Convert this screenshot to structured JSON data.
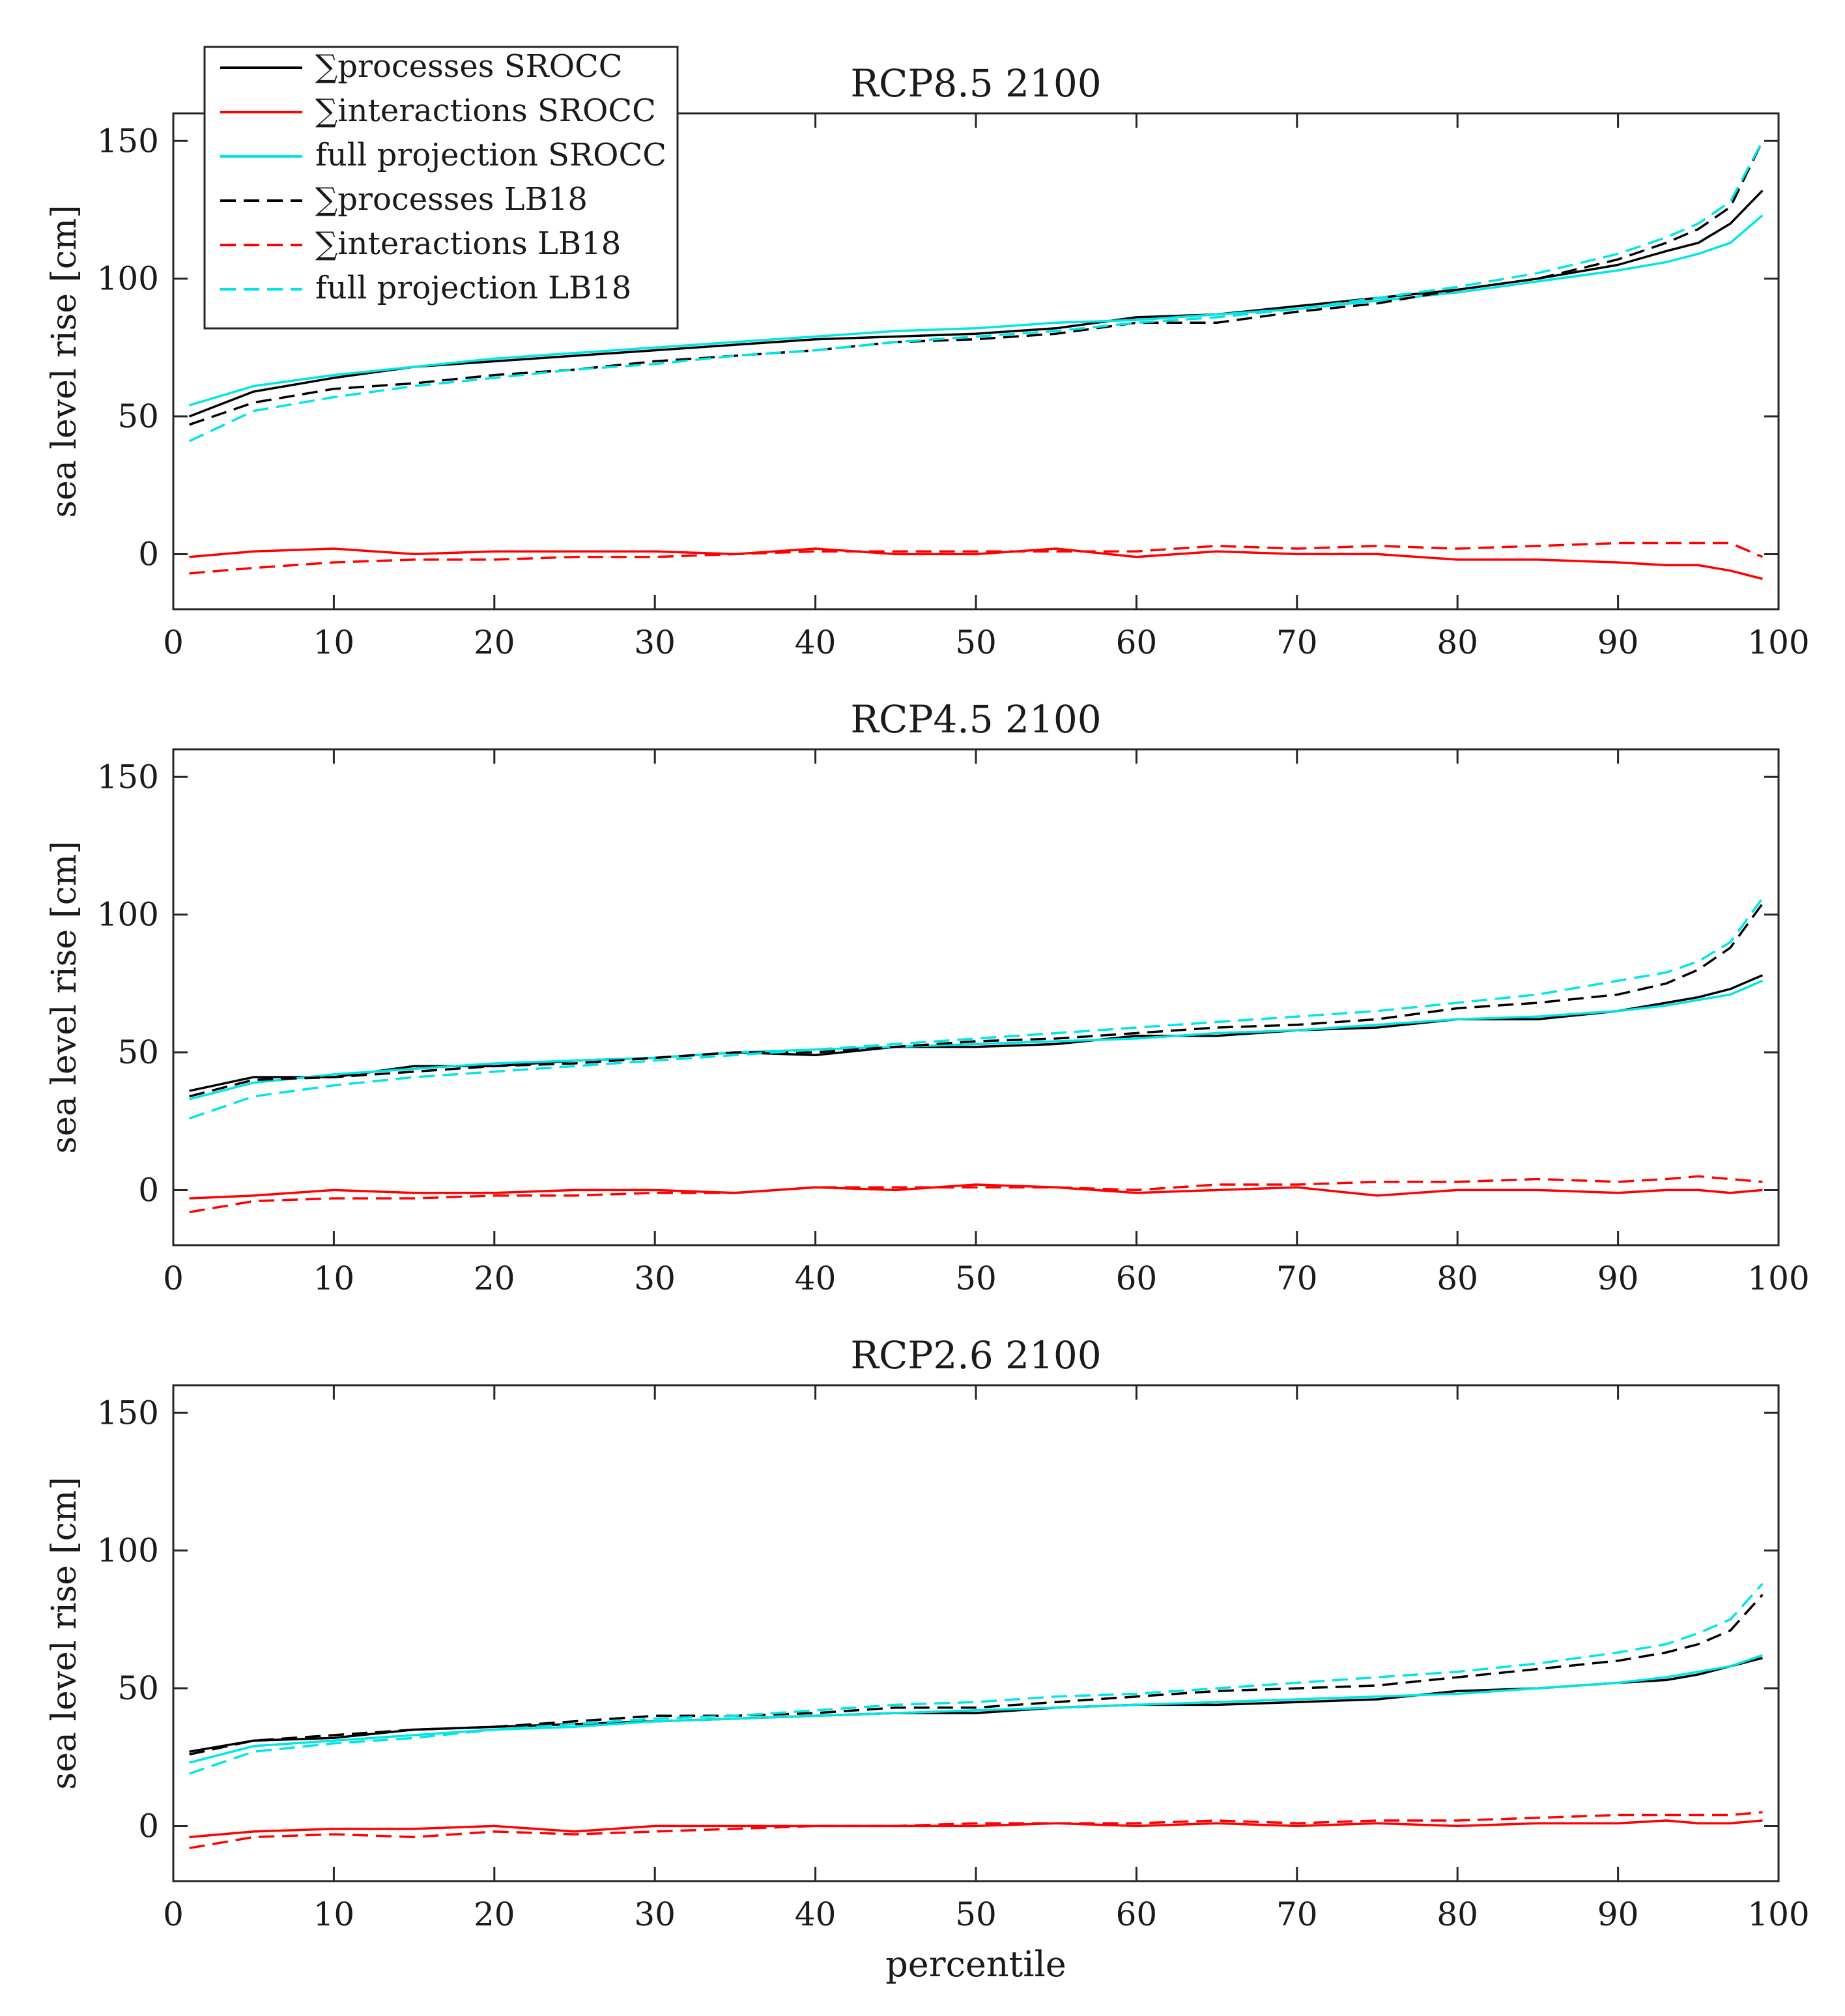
{
  "chart_data": [
    {
      "type": "line",
      "title": "RCP8.5 2100",
      "xlabel": "",
      "ylabel": "sea level rise [cm]",
      "xlim": [
        0,
        100
      ],
      "ylim": [
        -20,
        160
      ],
      "xticks": [
        0,
        10,
        20,
        30,
        40,
        50,
        60,
        70,
        80,
        90,
        100
      ],
      "yticks": [
        0,
        50,
        100,
        150
      ],
      "grid": false,
      "legend": "top-left",
      "x": [
        1,
        5,
        10,
        15,
        20,
        25,
        30,
        35,
        40,
        45,
        50,
        55,
        60,
        65,
        70,
        75,
        80,
        85,
        90,
        93,
        95,
        97,
        99
      ],
      "series": [
        {
          "name": "∑processes SROCC",
          "color": "#000000",
          "dash": "solid",
          "values": [
            50,
            59,
            64,
            68,
            70,
            72,
            74,
            76,
            78,
            79,
            80,
            82,
            86,
            87,
            90,
            93,
            96,
            100,
            105,
            110,
            113,
            120,
            132
          ]
        },
        {
          "name": "∑interactions SROCC",
          "color": "#ff0000",
          "dash": "solid",
          "values": [
            -1,
            1,
            2,
            0,
            1,
            1,
            1,
            0,
            2,
            0,
            0,
            2,
            -1,
            1,
            0,
            0,
            -2,
            -2,
            -3,
            -4,
            -4,
            -6,
            -9
          ]
        },
        {
          "name": "full projection SROCC",
          "color": "#00e5e5",
          "dash": "solid",
          "values": [
            54,
            61,
            65,
            68,
            71,
            73,
            75,
            77,
            79,
            81,
            82,
            84,
            85,
            87,
            89,
            92,
            95,
            99,
            103,
            106,
            109,
            113,
            123
          ]
        },
        {
          "name": "∑processes LB18",
          "color": "#000000",
          "dash": "dashed",
          "values": [
            47,
            55,
            60,
            62,
            65,
            67,
            70,
            72,
            74,
            77,
            78,
            80,
            84,
            84,
            88,
            91,
            96,
            100,
            107,
            113,
            118,
            126,
            150
          ]
        },
        {
          "name": "∑interactions LB18",
          "color": "#ff0000",
          "dash": "dashed",
          "values": [
            -7,
            -5,
            -3,
            -2,
            -2,
            -1,
            -1,
            0,
            1,
            1,
            1,
            1,
            1,
            3,
            2,
            3,
            2,
            3,
            4,
            4,
            4,
            4,
            -1
          ]
        },
        {
          "name": "full projection LB18",
          "color": "#00e5e5",
          "dash": "dashed",
          "values": [
            41,
            52,
            57,
            61,
            64,
            67,
            69,
            72,
            74,
            77,
            79,
            81,
            84,
            86,
            89,
            93,
            97,
            102,
            109,
            115,
            120,
            128,
            150
          ]
        }
      ]
    },
    {
      "type": "line",
      "title": "RCP4.5 2100",
      "xlabel": "",
      "ylabel": "sea level rise [cm]",
      "xlim": [
        0,
        100
      ],
      "ylim": [
        -20,
        160
      ],
      "xticks": [
        0,
        10,
        20,
        30,
        40,
        50,
        60,
        70,
        80,
        90,
        100
      ],
      "yticks": [
        0,
        50,
        100,
        150
      ],
      "grid": false,
      "legend": "none",
      "x": [
        1,
        5,
        10,
        15,
        20,
        25,
        30,
        35,
        40,
        45,
        50,
        55,
        60,
        65,
        70,
        75,
        80,
        85,
        90,
        93,
        95,
        97,
        99
      ],
      "series": [
        {
          "name": "∑processes SROCC",
          "color": "#000000",
          "dash": "solid",
          "values": [
            36,
            41,
            41,
            45,
            45,
            47,
            48,
            50,
            49,
            52,
            52,
            53,
            56,
            56,
            58,
            59,
            62,
            62,
            65,
            68,
            70,
            73,
            78
          ]
        },
        {
          "name": "∑interactions SROCC",
          "color": "#ff0000",
          "dash": "solid",
          "values": [
            -3,
            -2,
            0,
            -1,
            -1,
            0,
            0,
            -1,
            1,
            0,
            2,
            1,
            -1,
            0,
            1,
            -2,
            0,
            0,
            -1,
            0,
            0,
            -1,
            0
          ]
        },
        {
          "name": "full projection SROCC",
          "color": "#00e5e5",
          "dash": "solid",
          "values": [
            33,
            39,
            42,
            44,
            46,
            47,
            48,
            50,
            51,
            52,
            53,
            54,
            55,
            57,
            58,
            60,
            62,
            63,
            65,
            67,
            69,
            71,
            76
          ]
        },
        {
          "name": "∑processes LB18",
          "color": "#000000",
          "dash": "dashed",
          "values": [
            34,
            40,
            41,
            43,
            45,
            46,
            48,
            50,
            50,
            52,
            54,
            55,
            57,
            59,
            60,
            62,
            66,
            68,
            71,
            75,
            80,
            88,
            104
          ]
        },
        {
          "name": "∑interactions LB18",
          "color": "#ff0000",
          "dash": "dashed",
          "values": [
            -8,
            -4,
            -3,
            -3,
            -2,
            -2,
            -1,
            -1,
            1,
            1,
            1,
            1,
            0,
            2,
            2,
            3,
            3,
            4,
            3,
            4,
            5,
            4,
            3
          ]
        },
        {
          "name": "full projection LB18",
          "color": "#00e5e5",
          "dash": "dashed",
          "values": [
            26,
            34,
            38,
            41,
            43,
            45,
            47,
            49,
            51,
            53,
            55,
            57,
            59,
            61,
            63,
            65,
            68,
            71,
            76,
            79,
            83,
            90,
            106
          ]
        }
      ]
    },
    {
      "type": "line",
      "title": "RCP2.6 2100",
      "xlabel": "percentile",
      "ylabel": "sea level rise [cm]",
      "xlim": [
        0,
        100
      ],
      "ylim": [
        -20,
        160
      ],
      "xticks": [
        0,
        10,
        20,
        30,
        40,
        50,
        60,
        70,
        80,
        90,
        100
      ],
      "yticks": [
        0,
        50,
        100,
        150
      ],
      "grid": false,
      "legend": "none",
      "x": [
        1,
        5,
        10,
        15,
        20,
        25,
        30,
        35,
        40,
        45,
        50,
        55,
        60,
        65,
        70,
        75,
        80,
        85,
        90,
        93,
        95,
        97,
        99
      ],
      "series": [
        {
          "name": "∑processes SROCC",
          "color": "#000000",
          "dash": "solid",
          "values": [
            27,
            31,
            32,
            35,
            36,
            37,
            38,
            39,
            40,
            41,
            41,
            43,
            44,
            44,
            45,
            46,
            49,
            50,
            52,
            53,
            55,
            58,
            61
          ]
        },
        {
          "name": "∑interactions SROCC",
          "color": "#ff0000",
          "dash": "solid",
          "values": [
            -4,
            -2,
            -1,
            -1,
            0,
            -2,
            0,
            0,
            0,
            0,
            0,
            1,
            0,
            1,
            0,
            1,
            0,
            1,
            1,
            2,
            1,
            1,
            2
          ]
        },
        {
          "name": "full projection SROCC",
          "color": "#00e5e5",
          "dash": "solid",
          "values": [
            23,
            29,
            31,
            33,
            35,
            36,
            38,
            39,
            40,
            41,
            42,
            43,
            44,
            45,
            46,
            47,
            48,
            50,
            52,
            54,
            56,
            58,
            62
          ]
        },
        {
          "name": "∑processes LB18",
          "color": "#000000",
          "dash": "dashed",
          "values": [
            26,
            31,
            33,
            35,
            36,
            38,
            40,
            40,
            41,
            43,
            43,
            45,
            47,
            49,
            50,
            51,
            54,
            57,
            60,
            63,
            66,
            71,
            84
          ]
        },
        {
          "name": "∑interactions LB18",
          "color": "#ff0000",
          "dash": "dashed",
          "values": [
            -8,
            -4,
            -3,
            -4,
            -2,
            -3,
            -2,
            -1,
            0,
            0,
            1,
            1,
            1,
            2,
            1,
            2,
            2,
            3,
            4,
            4,
            4,
            4,
            5
          ]
        },
        {
          "name": "full projection LB18",
          "color": "#00e5e5",
          "dash": "dashed",
          "values": [
            19,
            27,
            30,
            32,
            35,
            37,
            39,
            40,
            42,
            44,
            45,
            47,
            48,
            50,
            52,
            54,
            56,
            59,
            63,
            66,
            70,
            75,
            88
          ]
        }
      ]
    }
  ]
}
